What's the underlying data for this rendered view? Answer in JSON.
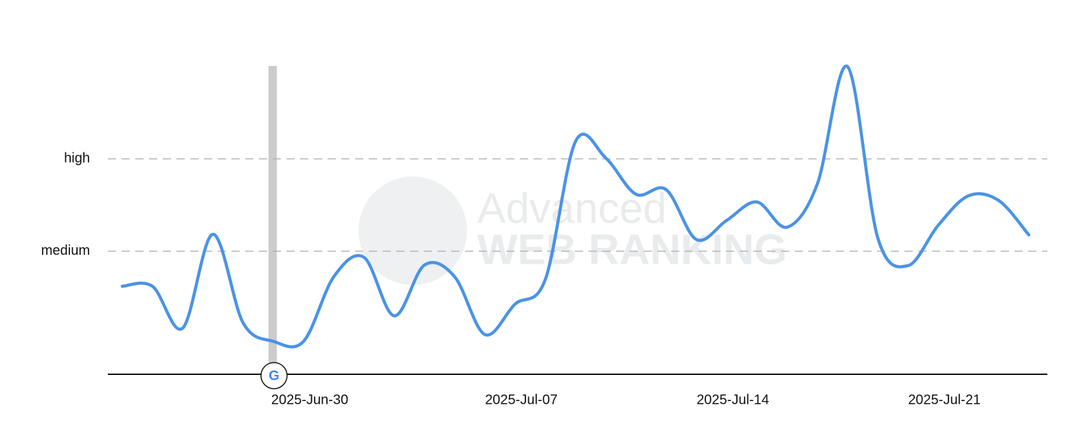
{
  "chart_data": {
    "type": "line",
    "watermark": [
      "Advanced",
      "WEB RANKING"
    ],
    "x": [
      "2025-Jun-24",
      "2025-Jun-25",
      "2025-Jun-26",
      "2025-Jun-27",
      "2025-Jun-28",
      "2025-Jun-29",
      "2025-Jun-30",
      "2025-Jul-01",
      "2025-Jul-02",
      "2025-Jul-03",
      "2025-Jul-04",
      "2025-Jul-05",
      "2025-Jul-06",
      "2025-Jul-07",
      "2025-Jul-08",
      "2025-Jul-09",
      "2025-Jul-10",
      "2025-Jul-11",
      "2025-Jul-12",
      "2025-Jul-13",
      "2025-Jul-14",
      "2025-Jul-15",
      "2025-Jul-16",
      "2025-Jul-17",
      "2025-Jul-18",
      "2025-Jul-19",
      "2025-Jul-20",
      "2025-Jul-21",
      "2025-Jul-22",
      "2025-Jul-23",
      "2025-Jul-24"
    ],
    "xticks": [
      "2025-Jun-30",
      "2025-Jul-07",
      "2025-Jul-14",
      "2025-Jul-21"
    ],
    "series": [
      {
        "color": "#4a93e6",
        "values": [
          28.6,
          28.6,
          15,
          45.5,
          16.7,
          10.7,
          10.7,
          31.7,
          38,
          19,
          35.5,
          31.7,
          12.9,
          22.8,
          30.8,
          75.7,
          70.3,
          58.5,
          60,
          43.8,
          50,
          56,
          47.8,
          61.8,
          100,
          44.4,
          35.3,
          48.4,
          58,
          56.5,
          45.3
        ]
      }
    ],
    "ylim": [
      0,
      100
    ],
    "yticks": [
      {
        "value": 40,
        "label": "medium"
      },
      {
        "value": 70,
        "label": "high"
      }
    ],
    "grid": true
  }
}
